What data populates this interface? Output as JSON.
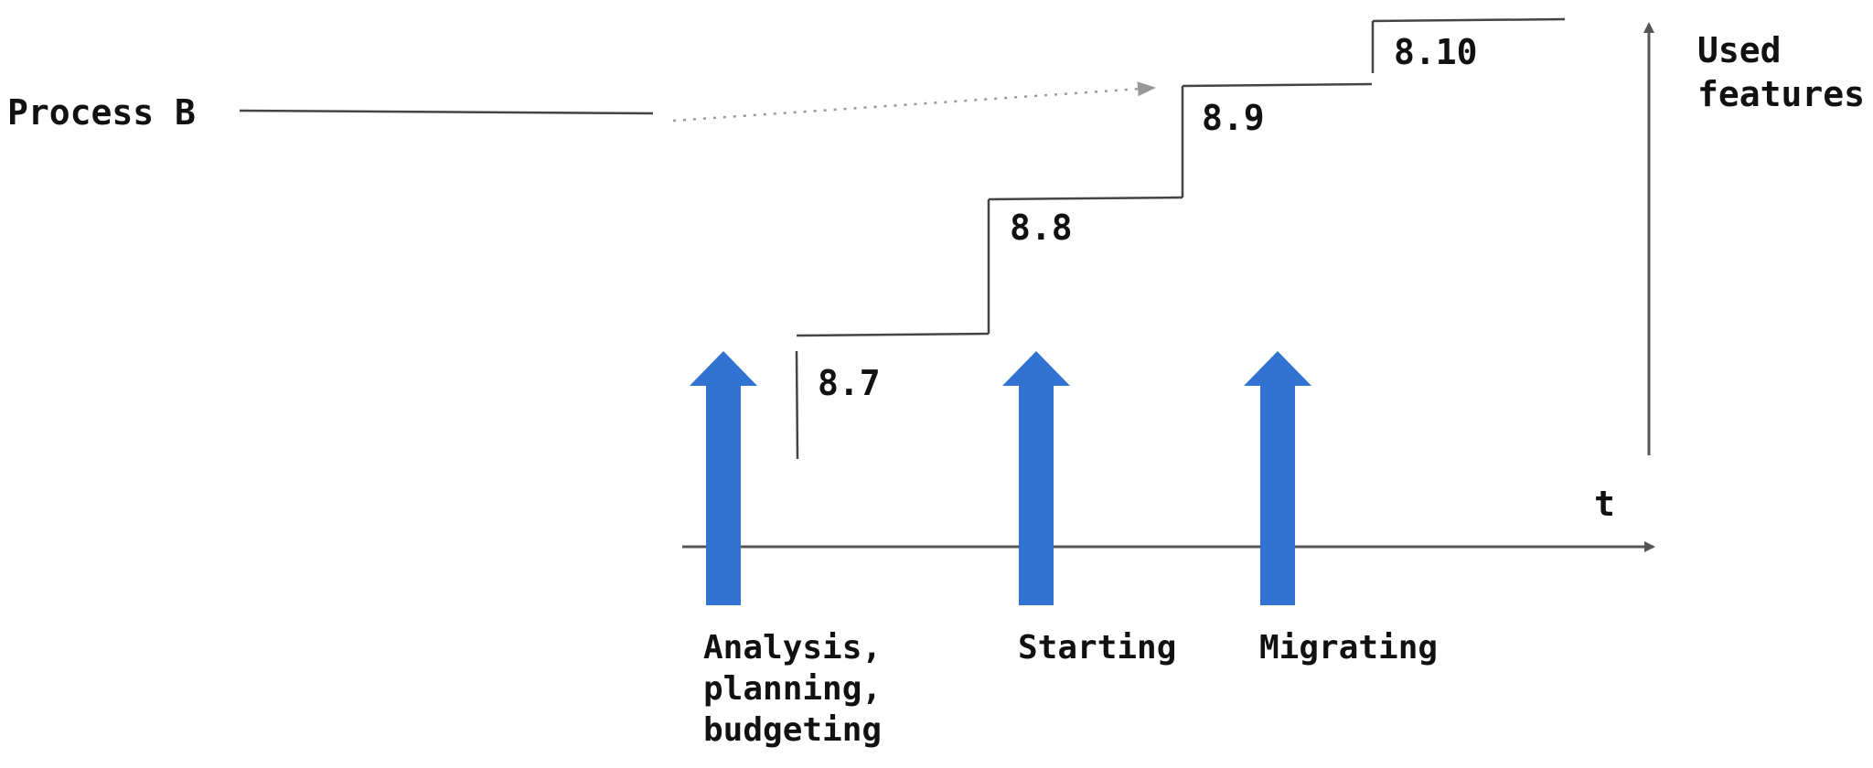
{
  "diagram": {
    "process_label": "Process B",
    "versions": [
      "8.7",
      "8.8",
      "8.9",
      "8.10"
    ],
    "y_axis_label_line1": "Used",
    "y_axis_label_line2": "features",
    "x_axis_label": "t",
    "phases": {
      "analysis": [
        "Analysis,",
        "planning,",
        "budgeting"
      ],
      "starting": "Starting",
      "migrating": "Migrating"
    },
    "colors": {
      "arrow_fill": "#3272D0",
      "line": "#555555",
      "dotted": "#999999",
      "text": "#111111"
    }
  }
}
